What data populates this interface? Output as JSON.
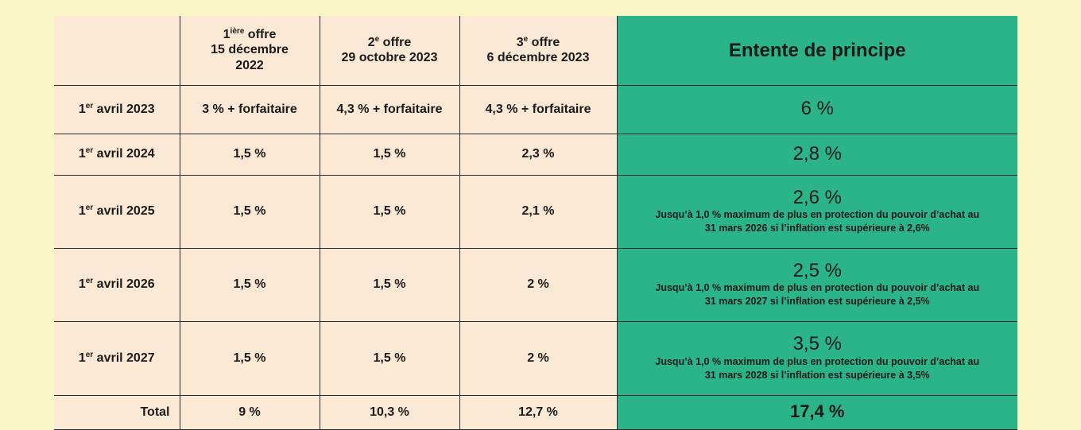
{
  "header": {
    "offer1": {
      "title": "1",
      "sup": "ière",
      "title_rest": " offre",
      "line2": "15 décembre",
      "line3": "2022"
    },
    "offer2": {
      "title": "2",
      "sup": "e",
      "title_rest": " offre",
      "line2": "29 octobre 2023"
    },
    "offer3": {
      "title": "3",
      "sup": "e",
      "title_rest": " offre",
      "line2": "6 décembre 2023"
    },
    "agreement": "Entente de principe"
  },
  "rows": [
    {
      "label": "1",
      "sup": "er",
      "label_rest": " avril 2023",
      "offer1": "3 % + forfaitaire",
      "offer2": "4,3 % + forfaitaire",
      "offer3": "4,3 % + forfaitaire",
      "agreement": "6 %",
      "note1": "",
      "note2": ""
    },
    {
      "label": "1",
      "sup": "er",
      "label_rest": " avril 2024",
      "offer1": "1,5 %",
      "offer2": "1,5 %",
      "offer3": "2,3 %",
      "agreement": "2,8 %",
      "note1": "",
      "note2": ""
    },
    {
      "label": "1",
      "sup": "er",
      "label_rest": " avril 2025",
      "offer1": "1,5 %",
      "offer2": "1,5 %",
      "offer3": "2,1 %",
      "agreement": "2,6 %",
      "note1": "Jusqu’à 1,0 % maximum de plus en protection du pouvoir d’achat au",
      "note2": "31 mars 2026 si l’inflation est supérieure à 2,6%"
    },
    {
      "label": "1",
      "sup": "er",
      "label_rest": " avril 2026",
      "offer1": "1,5 %",
      "offer2": "1,5 %",
      "offer3": "2 %",
      "agreement": "2,5 %",
      "note1": "Jusqu’à 1,0 % maximum  de plus en protection du pouvoir d’achat au",
      "note2": "31 mars 2027 si l’inflation est supérieure à 2,5%"
    },
    {
      "label": "1",
      "sup": "er",
      "label_rest": " avril 2027",
      "offer1": "1,5 %",
      "offer2": "1,5 %",
      "offer3": "2 %",
      "agreement": "3,5 %",
      "note1": "Jusqu’à 1,0 % maximum de plus en protection du pouvoir d’achat au",
      "note2": "31 mars 2028 si l’inflation est supérieure à 3,5%"
    }
  ],
  "total": {
    "label": "Total",
    "offer1": "9 %",
    "offer2": "10,3 %",
    "offer3": "12,7 %",
    "agreement": "17,4 %"
  },
  "colors": {
    "page_bg": "#fbf6c6",
    "table_bg": "#fce9d5",
    "accent": "#2bb38a",
    "border": "#2a2a2a"
  }
}
